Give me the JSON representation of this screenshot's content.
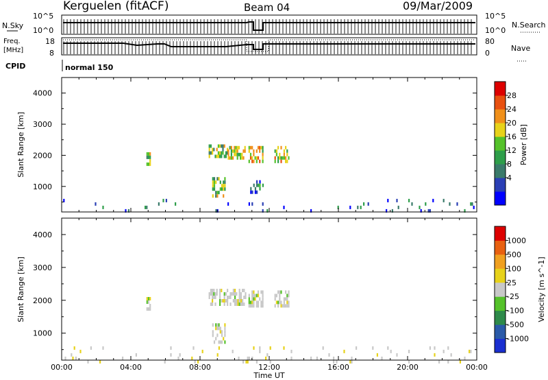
{
  "header": {
    "station": "Kerguelen (fitACF)",
    "beam": "Beam 04",
    "date": "09/Mar/2009"
  },
  "status_panels": {
    "nsky_label": "N.Sky",
    "nsky_ticks": [
      "10^5",
      "10^0"
    ],
    "nsearch_label": "N.Search",
    "nsearch_ticks": [
      "10^5",
      "10^0"
    ],
    "freq_label_line1": "Freq.",
    "freq_label_line2": "[MHz]",
    "freq_ticks": [
      "18",
      "8"
    ],
    "nave_label": "Nave",
    "nave_ticks": [
      "80",
      "0"
    ],
    "cpid_label": "CPID",
    "cpid_value": "normal 150"
  },
  "x_axis": {
    "title": "Time UT",
    "ticks": [
      "00:00",
      "04:00",
      "08:00",
      "12:00",
      "16:00",
      "20:00",
      "00:00"
    ]
  },
  "panels": {
    "power": {
      "ylabel": "Slant Range [km]",
      "yticks": [
        "4000",
        "3000",
        "2000",
        "1000"
      ],
      "colorbar_title": "Power [dB]",
      "colorbar_ticks": [
        "28",
        "24",
        "20",
        "16",
        "12",
        "8",
        "4"
      ],
      "colors": [
        "#0000ff",
        "#2a3fb5",
        "#3a7a6a",
        "#2e9e4a",
        "#55c22a",
        "#e7d21a",
        "#f0901a",
        "#e85010",
        "#dd0000"
      ]
    },
    "velocity": {
      "ylabel": "Slant Range [km]",
      "yticks": [
        "4000",
        "3000",
        "2000",
        "1000"
      ],
      "colorbar_title": "Velocity [m s^-1]",
      "colorbar_ticks": [
        "1000",
        "500",
        "100",
        "25",
        "-25",
        "-100",
        "-500",
        "-1000"
      ],
      "colors": [
        "#1a2fd0",
        "#2a5aa8",
        "#2e8a4a",
        "#55c22a",
        "#c8c8c8",
        "#e7d21a",
        "#f0a020",
        "#e86010",
        "#dd0000"
      ]
    }
  },
  "chart_data": [
    {
      "type": "heatmap",
      "title": "Kerguelen (fitACF) Beam 04 09/Mar/2009",
      "xlabel": "Time UT",
      "ylabel": "Slant Range [km]",
      "xlim": [
        0,
        24
      ],
      "ylim": [
        180,
        4500
      ],
      "colorbar": "Power [dB]",
      "clim": [
        0,
        30
      ],
      "regions": [
        {
          "x": [
            4.9,
            5.1
          ],
          "y": [
            1700,
            2100
          ],
          "value": 16
        },
        {
          "x": [
            8.5,
            9.6
          ],
          "y": [
            2000,
            2350
          ],
          "value": 14
        },
        {
          "x": [
            9.6,
            10.6
          ],
          "y": [
            1900,
            2300
          ],
          "value": 18
        },
        {
          "x": [
            10.8,
            11.6
          ],
          "y": [
            1850,
            2300
          ],
          "value": 20
        },
        {
          "x": [
            12.3,
            13.1
          ],
          "y": [
            1800,
            2300
          ],
          "value": 18
        },
        {
          "x": [
            8.7,
            9.4
          ],
          "y": [
            700,
            1300
          ],
          "value": 14
        },
        {
          "x": [
            10.9,
            11.6
          ],
          "y": [
            800,
            1200
          ],
          "value": 8
        },
        {
          "x": [
            0,
            24
          ],
          "y": [
            180,
            600
          ],
          "value": 6
        }
      ]
    },
    {
      "type": "heatmap",
      "title": "Kerguelen (fitACF) Beam 04 09/Mar/2009",
      "xlabel": "Time UT",
      "ylabel": "Slant Range [km]",
      "xlim": [
        0,
        24
      ],
      "ylim": [
        180,
        4500
      ],
      "colorbar": "Velocity [m s^-1]",
      "clim": [
        -1000,
        1000
      ],
      "regions": [
        {
          "x": [
            4.9,
            5.1
          ],
          "y": [
            1700,
            2100
          ],
          "value": 0
        },
        {
          "x": [
            8.5,
            10.6
          ],
          "y": [
            1900,
            2350
          ],
          "value": 0
        },
        {
          "x": [
            10.8,
            11.6
          ],
          "y": [
            1850,
            2300
          ],
          "value": 0
        },
        {
          "x": [
            12.3,
            13.1
          ],
          "y": [
            1800,
            2300
          ],
          "value": 0
        },
        {
          "x": [
            8.7,
            9.4
          ],
          "y": [
            700,
            1300
          ],
          "value": 0
        },
        {
          "x": [
            0,
            24
          ],
          "y": [
            180,
            600
          ],
          "value": -50
        }
      ]
    }
  ]
}
